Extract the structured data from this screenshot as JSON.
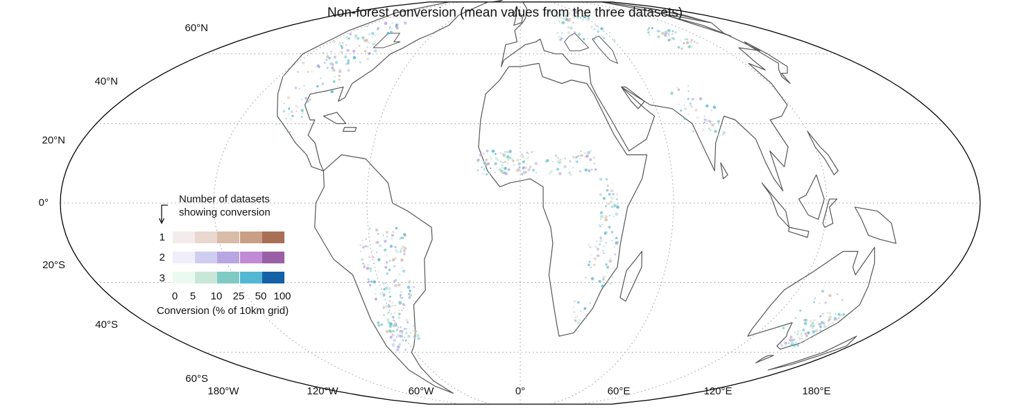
{
  "title": "Non-forest conversion (mean values from the three datasets)",
  "latitude_labels": [
    "60°N",
    "40°N",
    "20°N",
    "0°",
    "20°S",
    "40°S",
    "60°S"
  ],
  "longitude_labels": [
    "180°W",
    "120°W",
    "60°W",
    "0°",
    "60°E",
    "120°E",
    "180°E"
  ],
  "legend": {
    "title_line1": "Number of datasets",
    "title_line2": "showing conversion",
    "row_labels": [
      "1",
      "2",
      "3"
    ],
    "tick_labels": [
      "0",
      "5",
      "10",
      "25",
      "50",
      "100"
    ],
    "xlabel": "Conversion (% of 10km grid)",
    "colors": {
      "row1": [
        "#f3ecea",
        "#e8d8d0",
        "#d8bca8",
        "#c99f85",
        "#a86f55"
      ],
      "row2": [
        "#f1eefb",
        "#cfcdf0",
        "#b7a6e2",
        "#c08ad6",
        "#9a60a6"
      ],
      "row3": [
        "#eafaf0",
        "#c9e7d8",
        "#7fcbc4",
        "#52b7d2",
        "#1461a8"
      ]
    }
  },
  "colors": {
    "coastline": "#555555",
    "graticule": "#999999",
    "projection_outline": "#000000",
    "conversion_mid": "#7fcbc4",
    "conversion_high": "#52b7d2"
  }
}
